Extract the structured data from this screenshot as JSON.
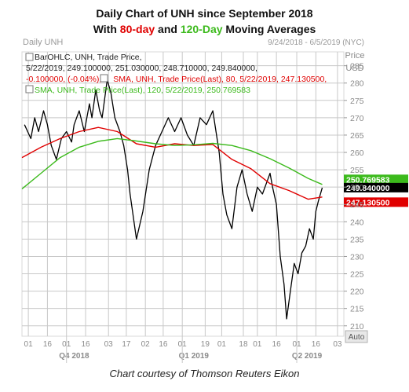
{
  "header": {
    "title_line1": "Daily Chart of UNH since September 2018",
    "title_line2_prefix": "With ",
    "title_line2_red": "80-day",
    "title_line2_mid": " and ",
    "title_line2_green": "120-Day",
    "title_line2_suffix": " Moving Averages"
  },
  "caption": "Chart courtesy of Thomson Reuters Eikon",
  "colors": {
    "price": "#000000",
    "sma80": "#e00000",
    "sma120": "#3cba1c",
    "grid": "#c8c8c8",
    "axis_text": "#8a8a8a"
  },
  "chart_data": {
    "type": "line",
    "header_left": "Daily UNH",
    "header_right": "9/24/2018 - 6/5/2019 (NYC)",
    "axis_title_top": "Price",
    "axis_title_unit": "USD",
    "auto_label": "Auto",
    "legend": {
      "line1": "BarOHLC, UNH, Trade Price,",
      "line2": "5/22/2019, 249.100000, 251.030000, 248.710000, 249.840000,",
      "line3a": "-0.100000, (-0.04%), ",
      "line3b": "SMA, UNH, Trade Price(Last), 80, 5/22/2019, 247.130500,",
      "line4": "SMA, UNH, Trade Price(Last), 120, 5/22/2019, 250.769583"
    },
    "ylim": [
      207,
      289
    ],
    "yticks": [
      210,
      215,
      220,
      225,
      230,
      235,
      240,
      245,
      250,
      255,
      260,
      265,
      270,
      275,
      280,
      285
    ],
    "x_tick_labels": [
      "01",
      "16",
      "01",
      "16",
      "03",
      "17",
      "02",
      "16",
      "01",
      "19",
      "01",
      "18",
      "01",
      "16",
      "01",
      "16",
      "03"
    ],
    "x_tick_days": [
      0,
      15,
      30,
      45,
      63,
      77,
      92,
      106,
      121,
      139,
      152,
      169,
      180,
      195,
      211,
      226,
      243
    ],
    "quarter_labels": [
      {
        "label": "Q4 2018",
        "day": 36
      },
      {
        "label": "Q1 2019",
        "day": 130
      },
      {
        "label": "Q2 2019",
        "day": 219
      }
    ],
    "price_tags": [
      {
        "name": "SMA 120",
        "value": 250.769583,
        "label": "250.769583"
      },
      {
        "name": "UNH",
        "value": 249.84,
        "label": "249.840000"
      },
      {
        "name": "SMA 80",
        "value": 247.1305,
        "label": "247.130500"
      }
    ],
    "x_day_range": [
      -5,
      248
    ],
    "series": [
      {
        "name": "BarOHLC, UNH, Trade Price",
        "color": "#000000",
        "x": [
          -3,
          2,
          5,
          8,
          12,
          15,
          18,
          22,
          26,
          30,
          34,
          36,
          40,
          44,
          48,
          50,
          53,
          56,
          58,
          62,
          65,
          68,
          72,
          75,
          78,
          80,
          85,
          90,
          95,
          100,
          105,
          110,
          115,
          120,
          125,
          130,
          135,
          140,
          145,
          150,
          153,
          156,
          160,
          164,
          168,
          172,
          176,
          180,
          184,
          188,
          190,
          192,
          195,
          198,
          201,
          203,
          206,
          209,
          212,
          215,
          218,
          221,
          224,
          226,
          228,
          231
        ],
        "y": [
          268,
          264,
          270,
          266,
          272,
          268,
          262,
          258,
          264,
          266,
          263,
          268,
          272,
          266,
          274,
          270,
          278,
          272,
          270,
          281,
          277,
          270,
          266,
          262,
          255,
          248,
          235,
          243,
          255,
          262,
          266,
          270,
          266,
          270,
          265,
          262,
          270,
          268,
          272,
          260,
          248,
          242,
          238,
          250,
          255,
          248,
          243,
          250,
          248,
          252,
          254,
          250,
          245,
          230,
          222,
          212,
          220,
          228,
          225,
          231,
          233,
          238,
          235,
          243,
          246,
          249.84
        ]
      },
      {
        "name": "SMA, UNH, Trade Price(Last), 80",
        "color": "#e00000",
        "x": [
          -5,
          10,
          25,
          40,
          55,
          70,
          85,
          100,
          115,
          130,
          145,
          160,
          175,
          190,
          205,
          220,
          231
        ],
        "y": [
          258.5,
          261.5,
          264,
          266,
          267.2,
          266,
          262.5,
          261.5,
          262.5,
          262,
          262.3,
          258,
          255.3,
          251,
          249,
          246.5,
          247.13
        ]
      },
      {
        "name": "SMA, UNH, Trade Price(Last), 120",
        "color": "#3cba1c",
        "x": [
          -5,
          10,
          25,
          40,
          55,
          70,
          85,
          100,
          115,
          130,
          145,
          160,
          175,
          190,
          205,
          220,
          231
        ],
        "y": [
          249.5,
          254,
          258.5,
          261.5,
          263.2,
          264,
          263.3,
          262.5,
          262,
          262.2,
          262.6,
          262,
          260.5,
          258.2,
          255.5,
          252.5,
          250.77
        ]
      }
    ]
  }
}
